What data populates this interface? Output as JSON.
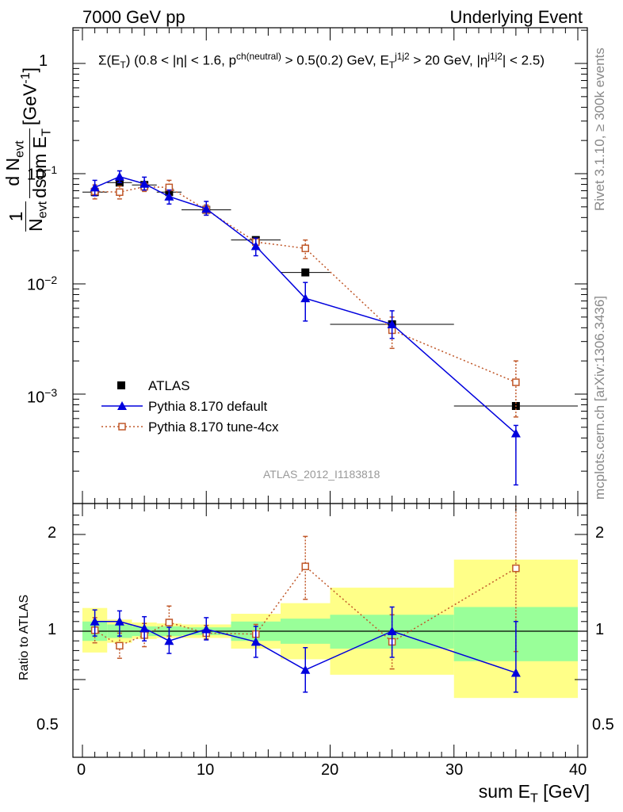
{
  "header": {
    "left": "7000 GeV pp",
    "right": "Underlying Event"
  },
  "annotation": "Σ(E_T) (0.8 < |η| < 1.6, p^ch(neutral) > 0.5(0.2) GeV, E_T^j1j2 > 20 GeV, |η^j1j2| < 2.5)",
  "analysis_label": "ATLAS_2012_I1183818",
  "side_labels": {
    "rivet": "Rivet 3.1.10, ≥ 300k events",
    "mcplots": "mcplots.cern.ch [arXiv:1306.3436]"
  },
  "legend": {
    "atlas": "ATLAS",
    "default": "Pythia 8.170 default",
    "tune": "Pythia 8.170 tune-4cx"
  },
  "colors": {
    "atlas": "#000000",
    "default": "#0000dd",
    "tune": "#c0582a",
    "band_inner": "#99ff99",
    "band_outer": "#ffff88",
    "analysis_label": "#999999"
  },
  "chart_data": [
    {
      "type": "scatter",
      "panel": "main",
      "ylabel": "1/N_evt dN_evt/dsum E_T [GeV^-1]",
      "xlabel": "sum E_T [GeV]",
      "xlim": [
        0,
        40
      ],
      "ylim": [
        0.00018,
        1.8
      ],
      "yscale": "log",
      "x_ticks": [
        "0",
        "10",
        "20",
        "30",
        "40"
      ],
      "y_ticks": [
        "1",
        "10^-1",
        "10^-2",
        "10^-3"
      ],
      "series": [
        {
          "name": "ATLAS",
          "x": [
            1,
            3,
            5,
            7,
            10,
            14,
            18,
            25,
            35
          ],
          "y": [
            0.068,
            0.083,
            0.079,
            0.068,
            0.047,
            0.025,
            0.0127,
            0.0043,
            0.00078
          ],
          "xerr": [
            1,
            1,
            1,
            1,
            2,
            2,
            2,
            5,
            5
          ]
        },
        {
          "name": "Pythia 8.170 default",
          "x": [
            1,
            3,
            5,
            7,
            10,
            14,
            18,
            25,
            35
          ],
          "y": [
            0.075,
            0.094,
            0.081,
            0.062,
            0.048,
            0.022,
            0.0074,
            0.0043,
            0.00044
          ],
          "yerr_low": [
            0.063,
            0.083,
            0.071,
            0.053,
            0.042,
            0.018,
            0.0046,
            0.0032,
            0.00015
          ],
          "yerr_high": [
            0.087,
            0.106,
            0.093,
            0.071,
            0.056,
            0.026,
            0.0103,
            0.0057,
            0.00052
          ]
        },
        {
          "name": "Pythia 8.170 tune-4cx",
          "x": [
            1,
            3,
            5,
            7,
            10,
            14,
            18,
            25,
            35
          ],
          "y": [
            0.069,
            0.068,
            0.076,
            0.075,
            0.047,
            0.024,
            0.021,
            0.0038,
            0.00128
          ],
          "yerr_low": [
            0.059,
            0.059,
            0.069,
            0.063,
            0.042,
            0.022,
            0.017,
            0.0026,
            0.00062
          ],
          "yerr_high": [
            0.079,
            0.077,
            0.083,
            0.087,
            0.052,
            0.026,
            0.025,
            0.005,
            0.002
          ]
        }
      ]
    },
    {
      "type": "scatter",
      "panel": "ratio",
      "ylabel": "Ratio to ATLAS",
      "xlabel": "sum E_T [GeV]",
      "xlim": [
        0,
        40
      ],
      "ylim": [
        0.35,
        2.3
      ],
      "y_ticks": [
        "0.5",
        "1",
        "2"
      ],
      "bands": {
        "x_edges": [
          0,
          2,
          4,
          6,
          8,
          12,
          16,
          20,
          30,
          40
        ],
        "inner_low": [
          0.9,
          0.93,
          0.95,
          0.95,
          0.96,
          0.9,
          0.87,
          0.82,
          0.69
        ],
        "inner_high": [
          1.1,
          1.07,
          1.05,
          1.05,
          1.04,
          1.1,
          1.13,
          1.17,
          1.25
        ],
        "outer_low": [
          0.78,
          0.88,
          0.92,
          0.93,
          0.93,
          0.82,
          0.71,
          0.55,
          0.31
        ],
        "outer_high": [
          1.24,
          1.12,
          1.09,
          1.08,
          1.07,
          1.18,
          1.29,
          1.45,
          1.74
        ]
      },
      "series": [
        {
          "name": "Pythia 8.170 default",
          "x": [
            1,
            3,
            5,
            7,
            10,
            14,
            18,
            25,
            35
          ],
          "y": [
            1.1,
            1.1,
            1.03,
            0.9,
            1.02,
            0.89,
            0.6,
            1.0,
            0.57
          ],
          "yerr_low": [
            0.95,
            0.95,
            0.9,
            0.77,
            0.91,
            0.73,
            0.37,
            0.73,
            0.37
          ],
          "yerr_high": [
            1.22,
            1.21,
            1.15,
            1.04,
            1.14,
            1.05,
            0.83,
            1.25,
            1.1
          ]
        },
        {
          "name": "Pythia 8.170 tune-4cx",
          "x": [
            1,
            3,
            5,
            7,
            10,
            14,
            18,
            25,
            35
          ],
          "y": [
            1.01,
            0.85,
            0.96,
            1.09,
            0.98,
            0.97,
            1.67,
            0.89,
            1.65
          ],
          "yerr_low": [
            0.88,
            0.72,
            0.84,
            0.95,
            0.92,
            0.87,
            1.33,
            0.61,
            0.79
          ],
          "yerr_high": [
            1.14,
            0.98,
            1.08,
            1.26,
            1.06,
            1.07,
            1.98,
            1.17,
            2.53
          ]
        }
      ]
    }
  ]
}
